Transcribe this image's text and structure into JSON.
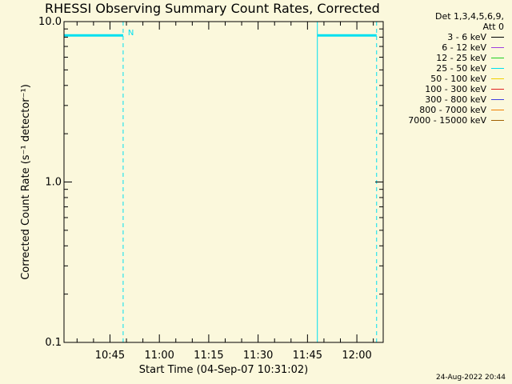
{
  "colors": {
    "background": "#fbf8dc",
    "axis": "#000000"
  },
  "chart_data": {
    "type": "line",
    "title": "RHESSI Observing Summary Count Rates, Corrected",
    "xlabel": "Start Time (04-Sep-07 10:31:02)",
    "ylabel": "Corrected Count Rate (s⁻¹ detector⁻¹)",
    "y_scale": "log",
    "ylim": [
      0.1,
      10.0
    ],
    "y_ticks": [
      {
        "value": 0.1,
        "label": "0.1"
      },
      {
        "value": 1.0,
        "label": "1.0"
      },
      {
        "value": 10.0,
        "label": "10.0"
      }
    ],
    "xlim": [
      "10:31:02",
      "12:08:00"
    ],
    "x_ticks": [
      {
        "value": "10:45",
        "label": "10:45"
      },
      {
        "value": "11:00",
        "label": "11:00"
      },
      {
        "value": "11:15",
        "label": "11:15"
      },
      {
        "value": "11:30",
        "label": "11:30"
      },
      {
        "value": "11:45",
        "label": "11:45"
      },
      {
        "value": "12:00",
        "label": "12:00"
      }
    ],
    "grid": false,
    "legend_position": "top-right",
    "legend_header": [
      "Det 1,3,4,5,6,9,",
      "Att 0"
    ],
    "legend": [
      {
        "label": "3 - 6 keV",
        "color": "#000000"
      },
      {
        "label": "6 - 12 keV",
        "color": "#a040e0"
      },
      {
        "label": "12 - 25 keV",
        "color": "#20d020"
      },
      {
        "label": "25 - 50 keV",
        "color": "#00e0f0"
      },
      {
        "label": "50 - 100 keV",
        "color": "#f0d000"
      },
      {
        "label": "100 - 300 keV",
        "color": "#e02020"
      },
      {
        "label": "300 - 800 keV",
        "color": "#4040e0"
      },
      {
        "label": "800 - 7000 keV",
        "color": "#f08000"
      },
      {
        "label": "7000 - 15000 keV",
        "color": "#a06000"
      }
    ],
    "series": [
      {
        "name": "25 - 50 keV",
        "color": "#00e0f0",
        "segments": [
          {
            "x": [
              "10:31:02",
              "10:49:00"
            ],
            "y": [
              8.2,
              8.2
            ]
          },
          {
            "x": [
              "11:48:00",
              "12:06:00"
            ],
            "y": [
              8.2,
              8.2
            ]
          }
        ]
      }
    ],
    "markers": [
      {
        "type": "solid",
        "x": "10:31:02",
        "color": "#00e0f0"
      },
      {
        "type": "dashed",
        "x": "10:49:00",
        "color": "#00e0f0"
      },
      {
        "type": "solid",
        "x": "11:48:00",
        "color": "#00e0f0"
      },
      {
        "type": "dashed",
        "x": "12:06:00",
        "color": "#00e0f0"
      }
    ],
    "annotations": [
      {
        "text": "N",
        "x": "10:49:00",
        "color": "#00e0f0"
      }
    ]
  },
  "footer": {
    "timestamp": "24-Aug-2022 20:44"
  }
}
